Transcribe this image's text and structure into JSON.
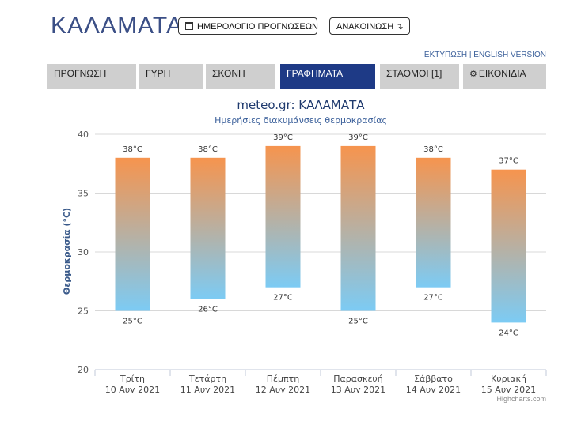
{
  "header": {
    "city": "ΚΑΛΑΜΑΤΑ",
    "calendar_button": "ΗΜΕΡΟΛΟΓΙΟ ΠΡΟΓΝΩΣΕΩΝ",
    "announcement_button": "ΑΝΑΚΟΙΝΩΣΗ",
    "announcement_arrow": "↴",
    "print_link": "ΕΚΤΥΠΩΣΗ",
    "separator": "|",
    "english_link": "ENGLISH VERSION"
  },
  "tabs": [
    {
      "label": "ΠΡΟΓΝΩΣΗ",
      "active": false,
      "icon": ""
    },
    {
      "label": "ΓΥΡΗ",
      "active": false,
      "icon": ""
    },
    {
      "label": "ΣΚΟΝΗ",
      "active": false,
      "icon": ""
    },
    {
      "label": "ΓΡΑΦΗΜΑΤΑ",
      "active": true,
      "icon": ""
    },
    {
      "label": "ΣΤΑΘΜΟΙ [1]",
      "active": false,
      "icon": ""
    },
    {
      "label": "ΕΙΚΟΝΙΔΙΑ",
      "active": false,
      "icon": "gear-icon"
    }
  ],
  "colors": {
    "active_tab": "#1e3a86",
    "inactive_tab": "#cfcfcf",
    "bar_top": "#f6944e",
    "bar_bottom": "#7ccbf4",
    "title_color": "#1f3a6e"
  },
  "chart_data": {
    "type": "bar",
    "subtype": "columnrange",
    "title": "meteo.gr: ΚΑΛΑΜΑΤΑ",
    "subtitle": "Ημερήσιες διακυμάνσεις θερμοκρασίας",
    "ylabel": "Θερμοκρασία (°C)",
    "xlabel": "",
    "ylim": [
      20,
      40
    ],
    "yticks": [
      20,
      25,
      30,
      35,
      40
    ],
    "grid": true,
    "categories": [
      {
        "day": "Τρίτη",
        "date": "10 Αυγ 2021"
      },
      {
        "day": "Τετάρτη",
        "date": "11 Αυγ 2021"
      },
      {
        "day": "Πέμπτη",
        "date": "12 Αυγ 2021"
      },
      {
        "day": "Παρασκευή",
        "date": "13 Αυγ 2021"
      },
      {
        "day": "Σάββατο",
        "date": "14 Αυγ 2021"
      },
      {
        "day": "Κυριακή",
        "date": "15 Αυγ 2021"
      }
    ],
    "low": [
      25,
      26,
      27,
      25,
      27,
      24
    ],
    "high": [
      38,
      38,
      39,
      39,
      38,
      37
    ],
    "unit": "°C",
    "credit": "Highcharts.com"
  }
}
